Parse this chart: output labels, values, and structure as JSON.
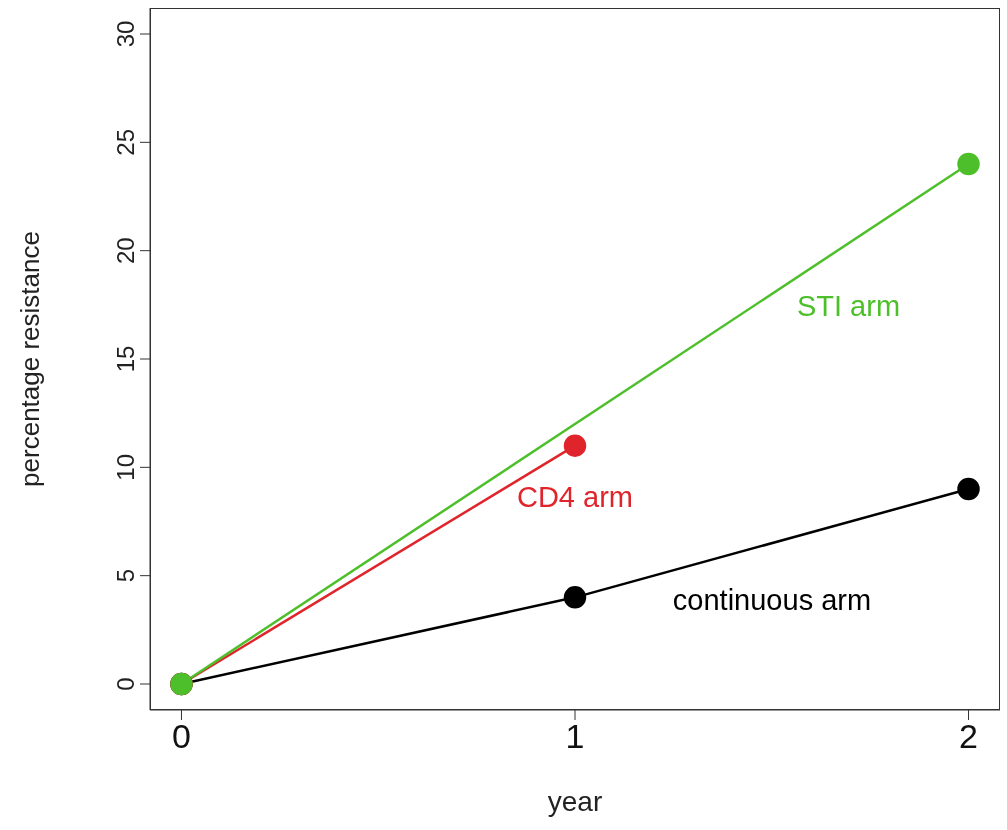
{
  "chart_data": {
    "type": "line",
    "xlabel": "year",
    "ylabel": "percentage resistance",
    "xlim": [
      -0.08,
      2.08
    ],
    "xticks": [
      0,
      1,
      2
    ],
    "ylim": [
      -1.2,
      31.2
    ],
    "yticks": [
      0,
      5,
      10,
      15,
      20,
      25,
      30
    ],
    "grid": false,
    "legend": false,
    "marker": "circle",
    "line_style": "solid",
    "series": [
      {
        "name": "continuous arm",
        "color": "#000000",
        "x": [
          0,
          1,
          2
        ],
        "values": [
          0,
          4,
          9
        ]
      },
      {
        "name": "CD4 arm",
        "color": "#e0242b",
        "x": [
          0,
          1
        ],
        "values": [
          0,
          11
        ]
      },
      {
        "name": "STI arm",
        "color": "#4dbf2a",
        "x": [
          0,
          2
        ],
        "values": [
          0,
          24
        ]
      }
    ]
  }
}
